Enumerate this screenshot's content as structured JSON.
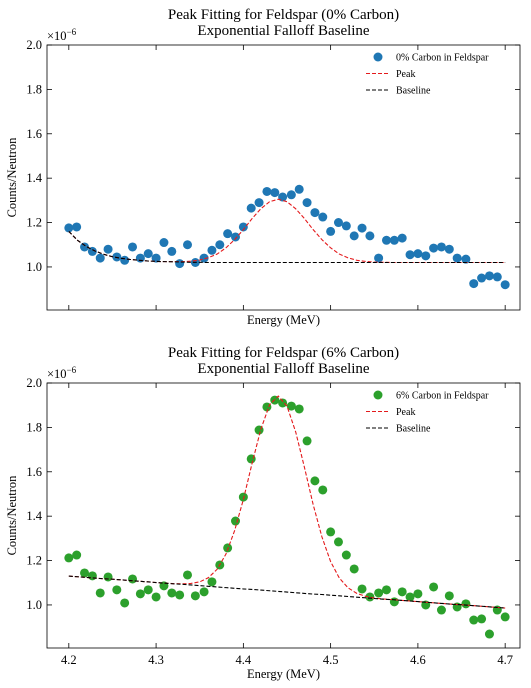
{
  "chart_data": [
    {
      "type": "scatter",
      "title": "Peak Fitting for Feldspar (0% Carbon)",
      "subtitle": "Exponential Falloff Baseline",
      "xlabel": "Energy (MeV)",
      "ylabel": "Counts/Neutron",
      "y_multiplier": {
        "base": "×10",
        "exponent": "−6"
      },
      "xlim": [
        4.175,
        4.717
      ],
      "ylim": [
        0.806,
        2.0
      ],
      "xticks": [
        4.2,
        4.3,
        4.4,
        4.5,
        4.6,
        4.7
      ],
      "show_xtick_labels": false,
      "yticks": [
        {
          "value": 1,
          "label": "1.0"
        },
        1.2,
        1.4,
        1.6,
        1.8,
        {
          "value": 2,
          "label": "2.0"
        }
      ],
      "legend": "upper right",
      "series": [
        {
          "name": "0% Carbon in Feldspar",
          "kind": "scatter",
          "color": "#1f77b4",
          "x": [
            4.2,
            4.209,
            4.218,
            4.227,
            4.236,
            4.245,
            4.255,
            4.264,
            4.273,
            4.282,
            4.291,
            4.3,
            4.309,
            4.318,
            4.327,
            4.336,
            4.345,
            4.355,
            4.364,
            4.373,
            4.382,
            4.391,
            4.4,
            4.409,
            4.418,
            4.427,
            4.436,
            4.445,
            4.455,
            4.464,
            4.473,
            4.482,
            4.491,
            4.5,
            4.509,
            4.518,
            4.527,
            4.536,
            4.545,
            4.555,
            4.564,
            4.573,
            4.582,
            4.591,
            4.6,
            4.609,
            4.618,
            4.627,
            4.636,
            4.645,
            4.655,
            4.664,
            4.673,
            4.682,
            4.691,
            4.7
          ],
          "values": [
            1.176,
            1.18,
            1.09,
            1.07,
            1.04,
            1.08,
            1.045,
            1.03,
            1.09,
            1.04,
            1.06,
            1.04,
            1.11,
            1.07,
            1.015,
            1.1,
            1.02,
            1.04,
            1.075,
            1.1,
            1.15,
            1.135,
            1.18,
            1.265,
            1.29,
            1.34,
            1.335,
            1.315,
            1.325,
            1.35,
            1.29,
            1.245,
            1.225,
            1.16,
            1.2,
            1.185,
            1.14,
            1.175,
            1.14,
            1.04,
            1.12,
            1.12,
            1.13,
            1.055,
            1.06,
            1.05,
            1.085,
            1.09,
            1.08,
            1.04,
            1.035,
            0.925,
            0.95,
            0.96,
            0.955,
            0.92
          ]
        },
        {
          "name": "Peak",
          "kind": "line",
          "color": "#e41a1c",
          "dash": true,
          "x": [
            4.2,
            4.21,
            4.22,
            4.23,
            4.24,
            4.25,
            4.26,
            4.27,
            4.28,
            4.29,
            4.3,
            4.31,
            4.32,
            4.33,
            4.34,
            4.35,
            4.36,
            4.37,
            4.38,
            4.39,
            4.4,
            4.41,
            4.42,
            4.43,
            4.44,
            4.45,
            4.46,
            4.47,
            4.48,
            4.49,
            4.5,
            4.51,
            4.52,
            4.53,
            4.54,
            4.55,
            4.56,
            4.57,
            4.58,
            4.59,
            4.6,
            4.61,
            4.62,
            4.63,
            4.64,
            4.65,
            4.66,
            4.67,
            4.68,
            4.69,
            4.7
          ],
          "values": [
            1.16,
            1.12,
            1.092,
            1.072,
            1.057,
            1.046,
            1.039,
            1.034,
            1.03,
            1.027,
            1.025,
            1.024,
            1.024,
            1.024,
            1.026,
            1.031,
            1.042,
            1.058,
            1.086,
            1.123,
            1.168,
            1.218,
            1.262,
            1.294,
            1.305,
            1.294,
            1.262,
            1.218,
            1.168,
            1.123,
            1.086,
            1.058,
            1.041,
            1.03,
            1.025,
            1.022,
            1.021,
            1.02,
            1.02,
            1.02,
            1.02,
            1.02,
            1.02,
            1.02,
            1.02,
            1.02,
            1.02,
            1.02,
            1.02,
            1.02,
            1.02
          ]
        },
        {
          "name": "Baseline",
          "kind": "line",
          "color": "#000000",
          "dash": true,
          "x": [
            4.2,
            4.21,
            4.22,
            4.23,
            4.24,
            4.25,
            4.26,
            4.27,
            4.28,
            4.29,
            4.3,
            4.31,
            4.32,
            4.33,
            4.34,
            4.35,
            4.36,
            4.37,
            4.38,
            4.39,
            4.4,
            4.41,
            4.42,
            4.43,
            4.44,
            4.45,
            4.46,
            4.47,
            4.48,
            4.49,
            4.5,
            4.51,
            4.52,
            4.53,
            4.54,
            4.55,
            4.56,
            4.57,
            4.58,
            4.59,
            4.6,
            4.61,
            4.62,
            4.63,
            4.64,
            4.65,
            4.66,
            4.67,
            4.68,
            4.69,
            4.7
          ],
          "values": [
            1.16,
            1.12,
            1.092,
            1.072,
            1.057,
            1.046,
            1.039,
            1.034,
            1.03,
            1.027,
            1.025,
            1.024,
            1.023,
            1.022,
            1.021,
            1.021,
            1.02,
            1.02,
            1.02,
            1.02,
            1.02,
            1.02,
            1.02,
            1.02,
            1.02,
            1.02,
            1.02,
            1.02,
            1.02,
            1.02,
            1.02,
            1.02,
            1.02,
            1.02,
            1.02,
            1.02,
            1.02,
            1.02,
            1.02,
            1.02,
            1.02,
            1.02,
            1.02,
            1.02,
            1.02,
            1.02,
            1.02,
            1.02,
            1.02,
            1.02,
            1.02
          ]
        }
      ]
    },
    {
      "type": "scatter",
      "title": "Peak Fitting for Feldspar (6% Carbon)",
      "subtitle": "Exponential Falloff Baseline",
      "xlabel": "Energy (MeV)",
      "ylabel": "Counts/Neutron",
      "y_multiplier": {
        "base": "×10",
        "exponent": "−6"
      },
      "xlim": [
        4.175,
        4.717
      ],
      "ylim": [
        0.806,
        2.0
      ],
      "xticks": [
        4.2,
        4.3,
        4.4,
        4.5,
        4.6,
        4.7
      ],
      "show_xtick_labels": true,
      "yticks": [
        {
          "value": 1,
          "label": "1.0"
        },
        1.2,
        1.4,
        1.6,
        1.8,
        {
          "value": 2,
          "label": "2.0"
        }
      ],
      "legend": "upper right",
      "series": [
        {
          "name": "6% Carbon in Feldspar",
          "kind": "scatter",
          "color": "#2ca02c",
          "x": [
            4.2,
            4.209,
            4.218,
            4.227,
            4.236,
            4.245,
            4.255,
            4.264,
            4.273,
            4.282,
            4.291,
            4.3,
            4.309,
            4.318,
            4.327,
            4.336,
            4.345,
            4.355,
            4.364,
            4.373,
            4.382,
            4.391,
            4.4,
            4.409,
            4.418,
            4.427,
            4.436,
            4.445,
            4.455,
            4.464,
            4.473,
            4.482,
            4.491,
            4.5,
            4.509,
            4.518,
            4.527,
            4.536,
            4.545,
            4.555,
            4.564,
            4.573,
            4.582,
            4.591,
            4.6,
            4.609,
            4.618,
            4.627,
            4.636,
            4.645,
            4.655,
            4.664,
            4.673,
            4.682,
            4.691,
            4.7
          ],
          "values": [
            1.212,
            1.225,
            1.144,
            1.131,
            1.054,
            1.126,
            1.068,
            1.009,
            1.117,
            1.05,
            1.068,
            1.036,
            1.086,
            1.054,
            1.045,
            1.135,
            1.041,
            1.059,
            1.104,
            1.18,
            1.257,
            1.378,
            1.486,
            1.658,
            1.788,
            1.892,
            1.923,
            1.91,
            1.896,
            1.883,
            1.739,
            1.559,
            1.518,
            1.329,
            1.284,
            1.225,
            1.162,
            1.072,
            1.036,
            1.054,
            1.068,
            1.014,
            1.059,
            1.036,
            1.05,
            1.0,
            1.081,
            0.977,
            1.041,
            0.991,
            1.005,
            0.932,
            0.937,
            0.869,
            0.977,
            0.946
          ]
        },
        {
          "name": "Peak",
          "kind": "line",
          "color": "#e41a1c",
          "dash": true,
          "x": [
            4.2,
            4.21,
            4.22,
            4.23,
            4.24,
            4.25,
            4.26,
            4.27,
            4.28,
            4.29,
            4.3,
            4.31,
            4.32,
            4.33,
            4.34,
            4.35,
            4.36,
            4.37,
            4.38,
            4.39,
            4.4,
            4.41,
            4.42,
            4.43,
            4.44,
            4.45,
            4.46,
            4.47,
            4.48,
            4.49,
            4.5,
            4.51,
            4.52,
            4.53,
            4.54,
            4.55,
            4.56,
            4.57,
            4.58,
            4.59,
            4.6,
            4.61,
            4.62,
            4.63,
            4.64,
            4.65,
            4.66,
            4.67,
            4.68,
            4.69,
            4.7
          ],
          "values": [
            1.13,
            1.127,
            1.124,
            1.121,
            1.118,
            1.116,
            1.113,
            1.11,
            1.107,
            1.104,
            1.101,
            1.098,
            1.096,
            1.095,
            1.097,
            1.104,
            1.123,
            1.161,
            1.229,
            1.335,
            1.475,
            1.638,
            1.791,
            1.902,
            1.941,
            1.896,
            1.779,
            1.62,
            1.452,
            1.307,
            1.195,
            1.121,
            1.077,
            1.052,
            1.039,
            1.031,
            1.027,
            1.024,
            1.021,
            1.018,
            1.015,
            1.012,
            1.009,
            1.006,
            1.003,
            1.001,
            0.998,
            0.995,
            0.992,
            0.989,
            0.986
          ]
        },
        {
          "name": "Baseline",
          "kind": "line",
          "color": "#000000",
          "dash": true,
          "x": [
            4.2,
            4.21,
            4.22,
            4.23,
            4.24,
            4.25,
            4.26,
            4.27,
            4.28,
            4.29,
            4.3,
            4.31,
            4.32,
            4.33,
            4.34,
            4.35,
            4.36,
            4.37,
            4.38,
            4.39,
            4.4,
            4.41,
            4.42,
            4.43,
            4.44,
            4.45,
            4.46,
            4.47,
            4.48,
            4.49,
            4.5,
            4.51,
            4.52,
            4.53,
            4.54,
            4.55,
            4.56,
            4.57,
            4.58,
            4.59,
            4.6,
            4.61,
            4.62,
            4.63,
            4.64,
            4.65,
            4.66,
            4.67,
            4.68,
            4.69,
            4.7
          ],
          "values": [
            1.13,
            1.127,
            1.124,
            1.121,
            1.118,
            1.116,
            1.113,
            1.11,
            1.107,
            1.104,
            1.101,
            1.098,
            1.095,
            1.093,
            1.09,
            1.087,
            1.084,
            1.081,
            1.078,
            1.075,
            1.072,
            1.07,
            1.067,
            1.064,
            1.061,
            1.058,
            1.055,
            1.052,
            1.049,
            1.047,
            1.044,
            1.041,
            1.038,
            1.035,
            1.032,
            1.029,
            1.026,
            1.024,
            1.021,
            1.018,
            1.015,
            1.012,
            1.009,
            1.006,
            1.003,
            1.001,
            0.998,
            0.995,
            0.992,
            0.989,
            0.986
          ]
        }
      ]
    }
  ]
}
